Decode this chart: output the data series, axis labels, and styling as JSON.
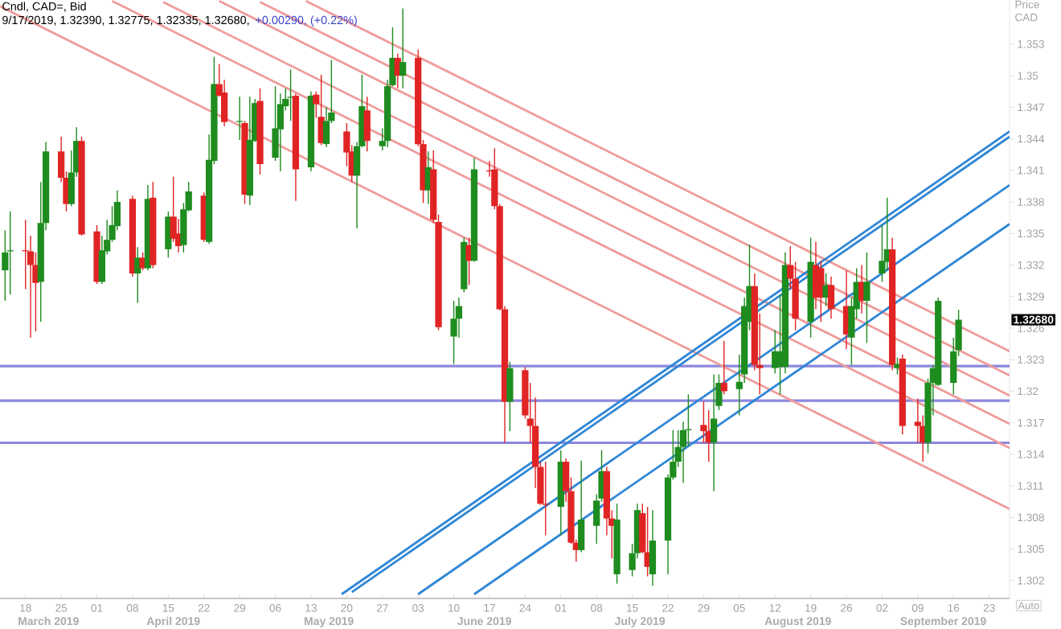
{
  "chart_data": {
    "type": "candlestick",
    "title": "Cndl, CAD=, Bid",
    "subtitle": "9/17/2019, 1.32390, 1.32775, 1.32335, 1.32680,",
    "ylabel": "Price CAD",
    "annotations": [
      "+0.00290, (+0.22%)",
      "Auto",
      "1.32680",
      "March 2019",
      "April 2019",
      "May 2019",
      "June 2019",
      "July 2019",
      "August 2019",
      "September 2019"
    ],
    "xlim": [
      "2019-03-13",
      "2019-09-27"
    ],
    "ylim": [
      1.3003,
      1.3572
    ],
    "xticks": [
      {
        "value": "2019-03-18",
        "label": "18"
      },
      {
        "value": "2019-03-25",
        "label": "25"
      },
      {
        "value": "2019-04-01",
        "label": "01"
      },
      {
        "value": "2019-04-08",
        "label": "08"
      },
      {
        "value": "2019-04-15",
        "label": "15"
      },
      {
        "value": "2019-04-22",
        "label": "22"
      },
      {
        "value": "2019-04-29",
        "label": "29"
      },
      {
        "value": "2019-05-06",
        "label": "06"
      },
      {
        "value": "2019-05-13",
        "label": "13"
      },
      {
        "value": "2019-05-20",
        "label": "20"
      },
      {
        "value": "2019-05-27",
        "label": "27"
      },
      {
        "value": "2019-06-03",
        "label": "03"
      },
      {
        "value": "2019-06-10",
        "label": "10"
      },
      {
        "value": "2019-06-17",
        "label": "17"
      },
      {
        "value": "2019-06-24",
        "label": "24"
      },
      {
        "value": "2019-07-01",
        "label": "01"
      },
      {
        "value": "2019-07-08",
        "label": "08"
      },
      {
        "value": "2019-07-15",
        "label": "15"
      },
      {
        "value": "2019-07-22",
        "label": "22"
      },
      {
        "value": "2019-07-29",
        "label": "29"
      },
      {
        "value": "2019-08-05",
        "label": "05"
      },
      {
        "value": "2019-08-12",
        "label": "12"
      },
      {
        "value": "2019-08-19",
        "label": "19"
      },
      {
        "value": "2019-08-26",
        "label": "26"
      },
      {
        "value": "2019-09-02",
        "label": "02"
      },
      {
        "value": "2019-09-09",
        "label": "09"
      },
      {
        "value": "2019-09-16",
        "label": "16"
      },
      {
        "value": "2019-09-23",
        "label": "23"
      }
    ],
    "yticks": [
      1.302,
      1.305,
      1.308,
      1.311,
      1.314,
      1.317,
      1.32,
      1.323,
      1.326,
      1.329,
      1.332,
      1.335,
      1.338,
      1.341,
      1.344,
      1.347,
      1.35,
      1.353
    ],
    "x": [
      "2019-03-14",
      "2019-03-15",
      "2019-03-18",
      "2019-03-19",
      "2019-03-20",
      "2019-03-21",
      "2019-03-22",
      "2019-03-25",
      "2019-03-26",
      "2019-03-27",
      "2019-03-28",
      "2019-03-29",
      "2019-04-01",
      "2019-04-02",
      "2019-04-03",
      "2019-04-04",
      "2019-04-05",
      "2019-04-08",
      "2019-04-09",
      "2019-04-10",
      "2019-04-11",
      "2019-04-12",
      "2019-04-15",
      "2019-04-16",
      "2019-04-17",
      "2019-04-18",
      "2019-04-19",
      "2019-04-22",
      "2019-04-23",
      "2019-04-24",
      "2019-04-25",
      "2019-04-26",
      "2019-04-29",
      "2019-04-30",
      "2019-05-01",
      "2019-05-02",
      "2019-05-03",
      "2019-05-06",
      "2019-05-07",
      "2019-05-08",
      "2019-05-09",
      "2019-05-10",
      "2019-05-13",
      "2019-05-14",
      "2019-05-15",
      "2019-05-16",
      "2019-05-17",
      "2019-05-20",
      "2019-05-21",
      "2019-05-22",
      "2019-05-23",
      "2019-05-24",
      "2019-05-27",
      "2019-05-28",
      "2019-05-29",
      "2019-05-30",
      "2019-05-31",
      "2019-06-03",
      "2019-06-04",
      "2019-06-05",
      "2019-06-06",
      "2019-06-07",
      "2019-06-10",
      "2019-06-11",
      "2019-06-12",
      "2019-06-13",
      "2019-06-14",
      "2019-06-17",
      "2019-06-18",
      "2019-06-19",
      "2019-06-20",
      "2019-06-21",
      "2019-06-24",
      "2019-06-25",
      "2019-06-26",
      "2019-06-27",
      "2019-06-28",
      "2019-07-01",
      "2019-07-02",
      "2019-07-03",
      "2019-07-04",
      "2019-07-05",
      "2019-07-08",
      "2019-07-09",
      "2019-07-10",
      "2019-07-11",
      "2019-07-12",
      "2019-07-15",
      "2019-07-16",
      "2019-07-17",
      "2019-07-18",
      "2019-07-19",
      "2019-07-22",
      "2019-07-23",
      "2019-07-24",
      "2019-07-25",
      "2019-07-26",
      "2019-07-29",
      "2019-07-30",
      "2019-07-31",
      "2019-08-01",
      "2019-08-02",
      "2019-08-05",
      "2019-08-06",
      "2019-08-07",
      "2019-08-08",
      "2019-08-09",
      "2019-08-12",
      "2019-08-13",
      "2019-08-14",
      "2019-08-15",
      "2019-08-16",
      "2019-08-19",
      "2019-08-20",
      "2019-08-21",
      "2019-08-22",
      "2019-08-23",
      "2019-08-26",
      "2019-08-27",
      "2019-08-28",
      "2019-08-29",
      "2019-08-30",
      "2019-09-02",
      "2019-09-03",
      "2019-09-04",
      "2019-09-05",
      "2019-09-06",
      "2019-09-09",
      "2019-09-10",
      "2019-09-11",
      "2019-09-12",
      "2019-09-13",
      "2019-09-16",
      "2019-09-17"
    ],
    "ohlc": [
      [
        1.3315,
        1.3353,
        1.3286,
        1.3332
      ],
      [
        1.3333,
        1.3371,
        1.3292,
        1.3334
      ],
      [
        1.3334,
        1.3363,
        1.3297,
        1.3333
      ],
      [
        1.3333,
        1.3348,
        1.3251,
        1.332
      ],
      [
        1.332,
        1.3332,
        1.3257,
        1.3303
      ],
      [
        1.3304,
        1.3399,
        1.3266,
        1.336
      ],
      [
        1.336,
        1.3437,
        1.3353,
        1.3428
      ],
      [
        1.3428,
        1.3442,
        1.3399,
        1.3403
      ],
      [
        1.3403,
        1.3409,
        1.3371,
        1.3378
      ],
      [
        1.3378,
        1.3429,
        1.3376,
        1.3408
      ],
      [
        1.3408,
        1.3451,
        1.3404,
        1.3438
      ],
      [
        1.3438,
        1.3442,
        1.3348,
        1.3349
      ],
      [
        1.3352,
        1.3358,
        1.3302,
        1.3304
      ],
      [
        1.3304,
        1.3348,
        1.3302,
        1.3334
      ],
      [
        1.3333,
        1.3363,
        1.333,
        1.3344
      ],
      [
        1.3344,
        1.3376,
        1.3342,
        1.3358
      ],
      [
        1.3357,
        1.3391,
        1.3353,
        1.338
      ],
      [
        1.3383,
        1.3386,
        1.3309,
        1.3312
      ],
      [
        1.3312,
        1.3337,
        1.3284,
        1.3327
      ],
      [
        1.3327,
        1.3332,
        1.3315,
        1.3317
      ],
      [
        1.3317,
        1.3396,
        1.3315,
        1.3383
      ],
      [
        1.3384,
        1.3399,
        1.3317,
        1.332
      ],
      [
        1.3335,
        1.3371,
        1.3327,
        1.3366
      ],
      [
        1.3366,
        1.3404,
        1.3342,
        1.3345
      ],
      [
        1.335,
        1.3364,
        1.3332,
        1.3338
      ],
      [
        1.3339,
        1.3379,
        1.3332,
        1.3373
      ],
      [
        1.3372,
        1.3399,
        1.3371,
        1.339
      ],
      [
        1.3386,
        1.3389,
        1.3342,
        1.3344
      ],
      [
        1.3342,
        1.3444,
        1.334,
        1.342
      ],
      [
        1.3419,
        1.3518,
        1.3416,
        1.3492
      ],
      [
        1.3492,
        1.3511,
        1.348,
        1.3481
      ],
      [
        1.3484,
        1.3496,
        1.3452,
        1.3456
      ],
      [
        1.3456,
        1.348,
        1.3439,
        1.3457
      ],
      [
        1.3455,
        1.3457,
        1.3378,
        1.3387
      ],
      [
        1.3386,
        1.348,
        1.3377,
        1.3439
      ],
      [
        1.3438,
        1.3478,
        1.3437,
        1.3474
      ],
      [
        1.3476,
        1.3488,
        1.3406,
        1.3416
      ],
      [
        1.3422,
        1.349,
        1.3419,
        1.345
      ],
      [
        1.3449,
        1.3483,
        1.3409,
        1.3473
      ],
      [
        1.3471,
        1.3488,
        1.3467,
        1.3478
      ],
      [
        1.3479,
        1.3506,
        1.3457,
        1.348
      ],
      [
        1.3481,
        1.3483,
        1.3381,
        1.3411
      ],
      [
        1.3413,
        1.3485,
        1.3409,
        1.3481
      ],
      [
        1.3482,
        1.3485,
        1.346,
        1.3473
      ],
      [
        1.3461,
        1.3501,
        1.3434,
        1.3436
      ],
      [
        1.3435,
        1.347,
        1.3432,
        1.3457
      ],
      [
        1.3457,
        1.3515,
        1.3455,
        1.3465
      ],
      [
        1.3447,
        1.3455,
        1.3414,
        1.3427
      ],
      [
        1.3428,
        1.3434,
        1.3399,
        1.3405
      ],
      [
        1.3405,
        1.3437,
        1.3355,
        1.3433
      ],
      [
        1.3433,
        1.3501,
        1.3432,
        1.3471
      ],
      [
        1.3467,
        1.348,
        1.3428,
        1.3438
      ],
      [
        1.3433,
        1.345,
        1.3429,
        1.3438
      ],
      [
        1.3438,
        1.3496,
        1.3432,
        1.349
      ],
      [
        1.3491,
        1.3546,
        1.349,
        1.3517
      ],
      [
        1.3517,
        1.3521,
        1.3488,
        1.35
      ],
      [
        1.35,
        1.3564,
        1.3488,
        1.3513
      ],
      [
        1.3517,
        1.3525,
        1.3433,
        1.3435
      ],
      [
        1.3435,
        1.3439,
        1.3379,
        1.3391
      ],
      [
        1.3391,
        1.3428,
        1.3378,
        1.3413
      ],
      [
        1.3411,
        1.3429,
        1.336,
        1.3363
      ],
      [
        1.3361,
        1.3368,
        1.3258,
        1.3261
      ],
      [
        1.3252,
        1.3286,
        1.3226,
        1.3269
      ],
      [
        1.3269,
        1.3289,
        1.3251,
        1.3281
      ],
      [
        1.3297,
        1.3346,
        1.3294,
        1.3342
      ],
      [
        1.3339,
        1.3346,
        1.3301,
        1.3324
      ],
      [
        1.3324,
        1.3422,
        1.3323,
        1.3411
      ],
      [
        1.341,
        1.3419,
        1.3404,
        1.3409
      ],
      [
        1.3411,
        1.3431,
        1.3373,
        1.3376
      ],
      [
        1.3376,
        1.3378,
        1.3277,
        1.3278
      ],
      [
        1.3278,
        1.3281,
        1.3151,
        1.319
      ],
      [
        1.319,
        1.3228,
        1.3162,
        1.3222
      ],
      [
        1.322,
        1.3223,
        1.3174,
        1.3177
      ],
      [
        1.3174,
        1.3208,
        1.3151,
        1.3167
      ],
      [
        1.3167,
        1.3194,
        1.3108,
        1.3128
      ],
      [
        1.3128,
        1.3133,
        1.3092,
        1.3093
      ],
      [
        1.3093,
        1.3133,
        1.3063,
        1.3092
      ],
      [
        1.309,
        1.3144,
        1.3063,
        1.3133
      ],
      [
        1.3133,
        1.3136,
        1.3095,
        1.3105
      ],
      [
        1.3105,
        1.3118,
        1.3055,
        1.3056
      ],
      [
        1.3056,
        1.3059,
        1.3038,
        1.3049
      ],
      [
        1.3049,
        1.3134,
        1.3047,
        1.3078
      ],
      [
        1.3072,
        1.3102,
        1.3055,
        1.3096
      ],
      [
        1.3098,
        1.3144,
        1.3095,
        1.3124
      ],
      [
        1.3124,
        1.3128,
        1.3063,
        1.3079
      ],
      [
        1.3079,
        1.3087,
        1.3041,
        1.3072
      ],
      [
        1.3026,
        1.3093,
        1.3017,
        1.3078
      ],
      [
        1.303,
        1.3055,
        1.3024,
        1.3046
      ],
      [
        1.3046,
        1.3093,
        1.3041,
        1.3087
      ],
      [
        1.3084,
        1.3093,
        1.3046,
        1.3047
      ],
      [
        1.3047,
        1.309,
        1.3024,
        1.3033
      ],
      [
        1.3026,
        1.3087,
        1.3015,
        1.3058
      ],
      [
        1.3058,
        1.3121,
        1.3026,
        1.3118
      ],
      [
        1.3118,
        1.3163,
        1.3116,
        1.3133
      ],
      [
        1.3133,
        1.3163,
        1.3128,
        1.3147
      ],
      [
        1.3147,
        1.3171,
        1.3113,
        1.3163
      ],
      [
        1.3163,
        1.3197,
        1.3148,
        1.3164
      ],
      [
        1.3168,
        1.319,
        1.3151,
        1.3162
      ],
      [
        1.3162,
        1.3182,
        1.3133,
        1.3151
      ],
      [
        1.3151,
        1.3216,
        1.3105,
        1.3174
      ],
      [
        1.3186,
        1.3216,
        1.3182,
        1.3208
      ],
      [
        1.3208,
        1.3248,
        1.3197,
        1.32
      ],
      [
        1.3202,
        1.3235,
        1.3177,
        1.3209
      ],
      [
        1.3216,
        1.3289,
        1.3208,
        1.3281
      ],
      [
        1.3266,
        1.3339,
        1.3258,
        1.33
      ],
      [
        1.33,
        1.3312,
        1.322,
        1.3225
      ],
      [
        1.3225,
        1.3274,
        1.3197,
        1.3222
      ],
      [
        1.3222,
        1.3258,
        1.3217,
        1.3238
      ],
      [
        1.3223,
        1.3292,
        1.3197,
        1.3238
      ],
      [
        1.3223,
        1.3332,
        1.3217,
        1.332
      ],
      [
        1.332,
        1.3338,
        1.3297,
        1.3307
      ],
      [
        1.3307,
        1.3323,
        1.3258,
        1.3269
      ],
      [
        1.3266,
        1.3346,
        1.3251,
        1.3323
      ],
      [
        1.332,
        1.3342,
        1.3278,
        1.3289
      ],
      [
        1.3317,
        1.3324,
        1.3266,
        1.3289
      ],
      [
        1.3289,
        1.3312,
        1.3281,
        1.3301
      ],
      [
        1.3301,
        1.3309,
        1.3269,
        1.3278
      ],
      [
        1.3281,
        1.3315,
        1.324,
        1.3254
      ],
      [
        1.3251,
        1.3289,
        1.3225,
        1.3281
      ],
      [
        1.3278,
        1.3317,
        1.3269,
        1.3304
      ],
      [
        1.3304,
        1.332,
        1.3274,
        1.3286
      ],
      [
        1.3286,
        1.3332,
        1.3246,
        1.3304
      ],
      [
        1.3312,
        1.3358,
        1.3304,
        1.3324
      ],
      [
        1.3323,
        1.3384,
        1.3315,
        1.3335
      ],
      [
        1.3335,
        1.3346,
        1.322,
        1.3225
      ],
      [
        1.3222,
        1.3232,
        1.3216,
        1.3226
      ],
      [
        1.3231,
        1.3235,
        1.3159,
        1.3167
      ],
      [
        1.3171,
        1.3193,
        1.3151,
        1.3167
      ],
      [
        1.3167,
        1.3177,
        1.3133,
        1.3151
      ],
      [
        1.3151,
        1.3212,
        1.3141,
        1.3208
      ],
      [
        1.3208,
        1.3225,
        1.3177,
        1.3222
      ],
      [
        1.3206,
        1.3289,
        1.3205,
        1.3286
      ],
      [
        1.3208,
        1.3251,
        1.3197,
        1.3238
      ],
      [
        1.3239,
        1.32775,
        1.32335,
        1.3268
      ]
    ],
    "colors": [
      "#1e8c1e",
      "#1e8c1e",
      "#e02424",
      "#e02424",
      "#e02424",
      "#1e8c1e",
      "#1e8c1e",
      "#e02424",
      "#e02424",
      "#1e8c1e",
      "#1e8c1e",
      "#e02424",
      "#e02424",
      "#1e8c1e",
      "#1e8c1e",
      "#1e8c1e",
      "#1e8c1e",
      "#e02424",
      "#1e8c1e",
      "#e02424",
      "#1e8c1e",
      "#e02424",
      "#1e8c1e",
      "#e02424",
      "#e02424",
      "#1e8c1e",
      "#1e8c1e",
      "#e02424",
      "#1e8c1e",
      "#1e8c1e",
      "#e02424",
      "#e02424",
      "#1e8c1e",
      "#e02424",
      "#1e8c1e",
      "#1e8c1e",
      "#e02424",
      "#1e8c1e",
      "#1e8c1e",
      "#1e8c1e",
      "#1e8c1e",
      "#e02424",
      "#1e8c1e",
      "#e02424",
      "#e02424",
      "#1e8c1e",
      "#1e8c1e",
      "#e02424",
      "#e02424",
      "#1e8c1e",
      "#1e8c1e",
      "#e02424",
      "#1e8c1e",
      "#1e8c1e",
      "#1e8c1e",
      "#e02424",
      "#1e8c1e",
      "#e02424",
      "#e02424",
      "#1e8c1e",
      "#e02424",
      "#e02424",
      "#1e8c1e",
      "#1e8c1e",
      "#1e8c1e",
      "#e02424",
      "#1e8c1e",
      "#e02424",
      "#e02424",
      "#e02424",
      "#e02424",
      "#1e8c1e",
      "#e02424",
      "#e02424",
      "#e02424",
      "#e02424",
      "#e02424",
      "#1e8c1e",
      "#e02424",
      "#e02424",
      "#e02424",
      "#1e8c1e",
      "#1e8c1e",
      "#1e8c1e",
      "#e02424",
      "#e02424",
      "#1e8c1e",
      "#1e8c1e",
      "#1e8c1e",
      "#e02424",
      "#e02424",
      "#1e8c1e",
      "#1e8c1e",
      "#1e8c1e",
      "#1e8c1e",
      "#1e8c1e",
      "#1e8c1e",
      "#e02424",
      "#e02424",
      "#1e8c1e",
      "#1e8c1e",
      "#e02424",
      "#1e8c1e",
      "#1e8c1e",
      "#1e8c1e",
      "#e02424",
      "#e02424",
      "#1e8c1e",
      "#1e8c1e",
      "#1e8c1e",
      "#e02424",
      "#e02424",
      "#1e8c1e",
      "#e02424",
      "#e02424",
      "#1e8c1e",
      "#e02424",
      "#e02424",
      "#1e8c1e",
      "#1e8c1e",
      "#e02424",
      "#1e8c1e",
      "#1e8c1e",
      "#1e8c1e",
      "#e02424",
      "#1e8c1e",
      "#e02424",
      "#e02424",
      "#e02424",
      "#1e8c1e",
      "#1e8c1e",
      "#1e8c1e",
      "#1e8c1e",
      "#1e8c1e"
    ],
    "series": [
      {
        "type": "line",
        "color": "#ef9c9c",
        "x": [
          "2019-05-12",
          "2019-09-27"
        ],
        "values": [
          1.3571,
          1.3238
        ]
      },
      {
        "type": "line",
        "color": "#ef9c9c",
        "x": [
          "2019-05-03",
          "2019-09-27"
        ],
        "values": [
          1.357,
          1.3215
        ]
      },
      {
        "type": "line",
        "color": "#ef9c9c",
        "x": [
          "2019-04-25",
          "2019-09-27"
        ],
        "values": [
          1.3571,
          1.3196
        ]
      },
      {
        "type": "line",
        "color": "#ef9c9c",
        "x": [
          "2019-04-14",
          "2019-09-27"
        ],
        "values": [
          1.357,
          1.3169
        ]
      },
      {
        "type": "line",
        "color": "#ef9c9c",
        "x": [
          "2019-04-04",
          "2019-09-27"
        ],
        "values": [
          1.3571,
          1.3146
        ]
      },
      {
        "type": "line",
        "color": "#ef9c9c",
        "x": [
          "2019-03-13",
          "2019-09-27"
        ],
        "values": [
          1.3566,
          1.3088
        ]
      },
      {
        "type": "line",
        "color": "#2f86d6",
        "x": [
          "2019-05-19",
          "2019-09-27"
        ],
        "values": [
          1.3007,
          1.3447
        ]
      },
      {
        "type": "line",
        "color": "#2f86d6",
        "x": [
          "2019-05-21",
          "2019-09-27"
        ],
        "values": [
          1.3009,
          1.3442
        ]
      },
      {
        "type": "line",
        "color": "#2f86d6",
        "x": [
          "2019-06-03",
          "2019-09-27"
        ],
        "values": [
          1.3007,
          1.3396
        ]
      },
      {
        "type": "line",
        "color": "#2f86d6",
        "x": [
          "2019-06-14",
          "2019-09-27"
        ],
        "values": [
          1.3007,
          1.3359
        ]
      }
    ],
    "ref_lines": [
      {
        "axis": "y",
        "value": 1.3224,
        "color": "#8c87dd"
      },
      {
        "axis": "y",
        "value": 1.3191,
        "color": "#8c87dd"
      },
      {
        "axis": "y",
        "value": 1.3151,
        "color": "#8c87dd"
      }
    ]
  }
}
